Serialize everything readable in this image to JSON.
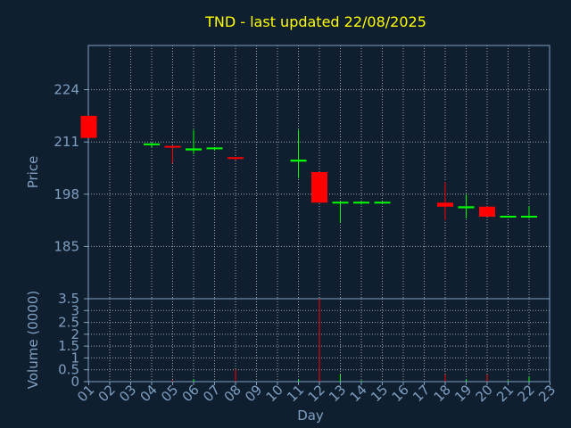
{
  "chart_data": {
    "type": "candlestick",
    "title": "TND - last updated 22/08/2025",
    "xlabel": "Day",
    "price_panel": {
      "ylabel": "Price",
      "yticks": [
        "224",
        "211",
        "198",
        "185"
      ],
      "ylim": [
        172,
        235
      ]
    },
    "volume_panel": {
      "ylabel": "Volume (0000)",
      "yticks": [
        "0",
        "0.5",
        "1",
        "1.5",
        "2",
        "2.5",
        "3",
        "3.5"
      ],
      "ylim": [
        0,
        3.5
      ]
    },
    "x_ticks": [
      "01",
      "02",
      "03",
      "04",
      "05",
      "06",
      "07",
      "08",
      "09",
      "10",
      "11",
      "12",
      "13",
      "14",
      "15",
      "16",
      "17",
      "18",
      "19",
      "20",
      "21",
      "22",
      "23"
    ],
    "candles": [
      {
        "day": 1,
        "open": 217.5,
        "high": 217.5,
        "low": 212.0,
        "close": 212.0,
        "volume": 0.0
      },
      {
        "day": 4,
        "open": 210.4,
        "high": 210.8,
        "low": 209.6,
        "close": 210.4,
        "volume": 0.0
      },
      {
        "day": 5,
        "open": 209.8,
        "high": 209.8,
        "low": 205.7,
        "close": 209.4,
        "volume": 0.05
      },
      {
        "day": 6,
        "open": 208.9,
        "high": 214.0,
        "low": 208.0,
        "close": 209.4,
        "volume": 0.1
      },
      {
        "day": 7,
        "open": 209.4,
        "high": 209.4,
        "low": 208.9,
        "close": 209.4,
        "volume": 0.0
      },
      {
        "day": 8,
        "open": 207.0,
        "high": 207.0,
        "low": 206.4,
        "close": 206.6,
        "volume": 0.5
      },
      {
        "day": 11,
        "open": 206.1,
        "high": 214.0,
        "low": 202.0,
        "close": 206.6,
        "volume": 0.1
      },
      {
        "day": 12,
        "open": 203.5,
        "high": 203.5,
        "low": 195.9,
        "close": 195.9,
        "volume": 3.5
      },
      {
        "day": 13,
        "open": 195.9,
        "high": 195.9,
        "low": 191.0,
        "close": 195.9,
        "volume": 0.3
      },
      {
        "day": 14,
        "open": 195.9,
        "high": 195.9,
        "low": 195.4,
        "close": 195.9,
        "volume": 0.05
      },
      {
        "day": 15,
        "open": 195.9,
        "high": 195.9,
        "low": 195.9,
        "close": 195.9,
        "volume": 0.0
      },
      {
        "day": 18,
        "open": 195.9,
        "high": 201.0,
        "low": 191.5,
        "close": 194.9,
        "volume": 0.3
      },
      {
        "day": 19,
        "open": 194.5,
        "high": 197.9,
        "low": 192.0,
        "close": 195.0,
        "volume": 0.1
      },
      {
        "day": 20,
        "open": 194.9,
        "high": 194.9,
        "low": 192.4,
        "close": 192.4,
        "volume": 0.3
      },
      {
        "day": 21,
        "open": 192.4,
        "high": 192.4,
        "low": 192.4,
        "close": 192.4,
        "volume": 0.05
      },
      {
        "day": 22,
        "open": 192.4,
        "high": 195.0,
        "low": 192.0,
        "close": 192.4,
        "volume": 0.2
      }
    ],
    "grid": true,
    "colors": {
      "background": "#0f1f30",
      "up": "#00ff00",
      "down": "#ff0000",
      "title": "#ffff00",
      "axis_text": "#7f9fc0",
      "grid": "#c8c8c8",
      "axis_line": "#7f9fc0"
    }
  }
}
